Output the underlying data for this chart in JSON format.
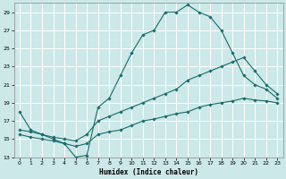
{
  "xlabel": "Humidex (Indice chaleur)",
  "background_color": "#cce8e8",
  "grid_color": "#ffffff",
  "line_color": "#1a6b6b",
  "xlim": [
    -0.5,
    23.5
  ],
  "ylim": [
    13,
    30
  ],
  "yticks": [
    13,
    15,
    17,
    19,
    21,
    23,
    25,
    27,
    29
  ],
  "xticks": [
    0,
    1,
    2,
    3,
    4,
    5,
    6,
    7,
    8,
    9,
    10,
    11,
    12,
    13,
    14,
    15,
    16,
    17,
    18,
    19,
    20,
    21,
    22,
    23
  ],
  "series": [
    {
      "x": [
        0,
        1,
        2,
        3,
        4,
        5,
        6,
        7,
        8,
        9,
        10,
        11,
        12,
        13,
        14,
        15,
        16,
        17,
        18,
        19,
        20,
        21,
        22,
        23
      ],
      "y": [
        18,
        16,
        15.5,
        15,
        14.5,
        13.0,
        13.2,
        18.5,
        19.5,
        22,
        24.5,
        26.5,
        27,
        29,
        29,
        29.8,
        29.0,
        28.5,
        27,
        24.5,
        22,
        21,
        20.5,
        19.5
      ]
    },
    {
      "x": [
        0,
        1,
        2,
        3,
        4,
        5,
        6,
        7,
        8,
        9,
        10,
        11,
        12,
        13,
        14,
        15,
        16,
        17,
        18,
        19,
        20,
        21,
        22,
        23
      ],
      "y": [
        16.0,
        15.8,
        15.5,
        15.2,
        15.0,
        14.8,
        15.5,
        17.0,
        17.5,
        18.0,
        18.5,
        19.0,
        19.5,
        20.0,
        20.5,
        21.5,
        22.0,
        22.5,
        23.0,
        23.5,
        24.0,
        22.5,
        21.0,
        20.0
      ]
    },
    {
      "x": [
        0,
        1,
        2,
        3,
        4,
        5,
        6,
        7,
        8,
        9,
        10,
        11,
        12,
        13,
        14,
        15,
        16,
        17,
        18,
        19,
        20,
        21,
        22,
        23
      ],
      "y": [
        15.5,
        15.2,
        15.0,
        14.8,
        14.5,
        14.2,
        14.5,
        15.5,
        15.8,
        16.0,
        16.5,
        17.0,
        17.2,
        17.5,
        17.8,
        18.0,
        18.5,
        18.8,
        19.0,
        19.2,
        19.5,
        19.3,
        19.2,
        19.0
      ]
    }
  ]
}
